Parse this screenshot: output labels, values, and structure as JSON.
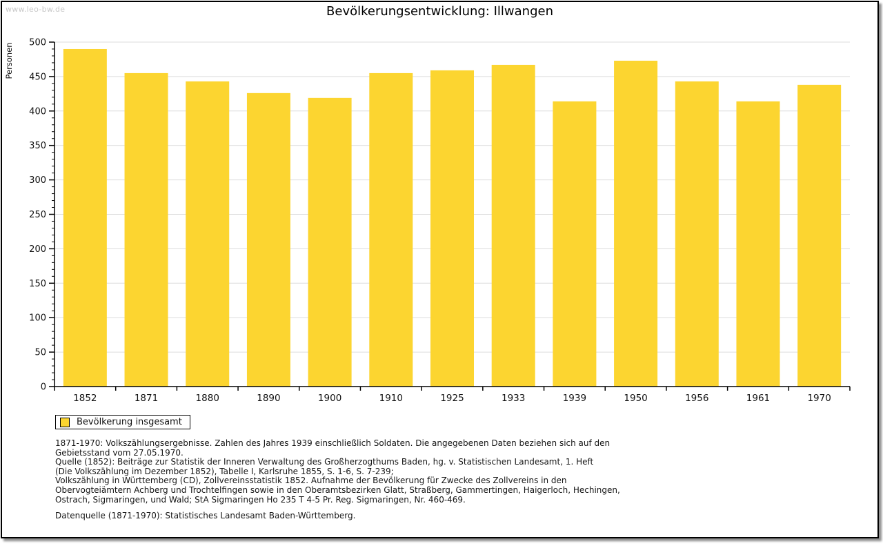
{
  "watermark": "www.leo-bw.de",
  "title": "Bevölkerungsentwicklung: Illwangen",
  "chart_data": {
    "type": "bar",
    "title": "Bevölkerungsentwicklung: Illwangen",
    "xlabel": "",
    "ylabel": "Personen",
    "categories": [
      "1852",
      "1871",
      "1880",
      "1890",
      "1900",
      "1910",
      "1925",
      "1933",
      "1939",
      "1950",
      "1956",
      "1961",
      "1970"
    ],
    "values": [
      490,
      455,
      443,
      426,
      419,
      455,
      459,
      467,
      414,
      473,
      443,
      414,
      438
    ],
    "ylim": [
      0,
      500
    ],
    "y_major_step": 50,
    "y_minor_step": 10,
    "grid": true,
    "grid_color": "#dcdcdc",
    "bar_color": "#FCD530",
    "axis_color": "#000000",
    "legend_position": "bottom-left",
    "legend_entries": [
      "Bevölkerung insgesamt"
    ]
  },
  "legend": {
    "label": "Bevölkerung insgesamt"
  },
  "footer": {
    "lines": [
      "1871-1970: Volkszählungsergebnisse. Zahlen des Jahres 1939 einschließlich Soldaten. Die angegebenen Daten beziehen sich auf den",
      "Gebietsstand vom 27.05.1970.",
      "Quelle (1852): Beiträge zur Statistik der Inneren Verwaltung des Großherzogthums Baden, hg. v. Statistischen Landesamt, 1. Heft",
      "(Die Volkszählung im Dezember 1852), Tabelle I, Karlsruhe 1855, S. 1-6, S. 7-239;",
      "Volkszählung in Württemberg (CD), Zollvereinsstatistik 1852. Aufnahme der Bevölkerung für Zwecke des Zollvereins in den",
      "Obervogteiämtern Achberg und Trochtelfingen sowie in den Oberamtsbezirken Glatt, Straßberg, Gammertingen, Haigerloch, Hechingen,",
      "Ostrach, Sigmaringen, und Wald; StA Sigmaringen Ho 235 T 4-5 Pr. Reg. Sigmaringen, Nr. 460-469."
    ],
    "source_line": "Datenquelle (1871-1970): Statistisches Landesamt Baden-Württemberg."
  }
}
